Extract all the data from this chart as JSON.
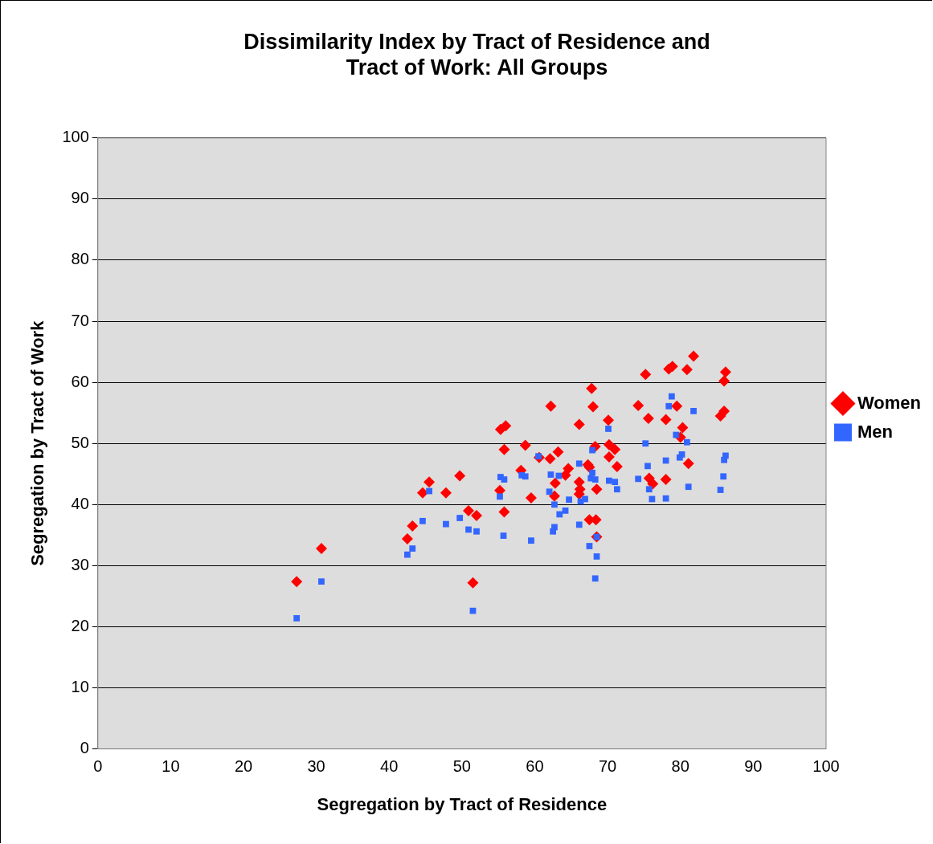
{
  "chart_data": {
    "type": "scatter",
    "title": "Dissimilarity Index by Tract of Residence and Tract of Work: All Groups",
    "xlabel": "Segregation by Tract of Residence",
    "ylabel": "Segregation by Tract of Work",
    "xlim": [
      0,
      100
    ],
    "xticks": [
      0,
      10,
      20,
      30,
      40,
      50,
      60,
      70,
      80,
      90,
      100
    ],
    "ylim": [
      0,
      100
    ],
    "yticks": [
      0,
      10,
      20,
      30,
      40,
      50,
      60,
      70,
      80,
      90,
      100
    ],
    "grid": "y",
    "legend": "right",
    "series": [
      {
        "name": "Women",
        "color": "#ff0000",
        "marker": "diamond",
        "x": [
          27.3,
          30.7,
          42.5,
          43.2,
          44.6,
          45.5,
          47.8,
          49.7,
          50.9,
          52.0,
          51.5,
          67.8,
          62.2,
          68.0,
          70.1,
          66.1,
          55.3,
          56.0,
          55.8,
          58.7,
          63.2,
          62.1,
          60.6,
          68.3,
          70.2,
          71.0,
          70.2,
          71.3,
          64.6,
          64.2,
          67.3,
          67.5,
          58.1,
          66.1,
          62.8,
          66.2,
          68.5,
          55.2,
          62.7,
          59.5,
          66.1,
          55.8,
          67.5,
          68.4,
          68.5,
          81.8,
          78.4,
          78.9,
          80.9,
          75.2,
          86.2,
          86.0,
          74.2,
          79.5,
          75.6,
          78.0,
          85.5,
          86.0,
          80.3,
          80.0,
          81.1,
          75.7,
          76.2,
          78.0
        ],
        "values": [
          27.4,
          32.8,
          34.4,
          36.5,
          41.9,
          43.7,
          41.9,
          44.7,
          39.0,
          38.2,
          27.2,
          59.0,
          56.1,
          56.0,
          53.8,
          53.1,
          52.3,
          52.9,
          49.0,
          49.7,
          48.6,
          47.5,
          47.7,
          49.5,
          49.8,
          49.0,
          47.8,
          46.2,
          45.9,
          44.8,
          46.5,
          46.1,
          45.6,
          43.7,
          43.5,
          42.5,
          42.5,
          42.3,
          41.4,
          41.1,
          41.7,
          38.8,
          37.5,
          37.5,
          34.7,
          64.3,
          62.2,
          62.6,
          62.1,
          61.3,
          61.7,
          60.2,
          56.2,
          56.1,
          54.1,
          53.9,
          54.5,
          55.3,
          52.6,
          51.0,
          46.7,
          44.3,
          43.4,
          44.1
        ]
      },
      {
        "name": "Men",
        "color": "#3366ff",
        "marker": "square",
        "x": [
          27.3,
          30.7,
          42.5,
          43.2,
          44.6,
          45.5,
          47.8,
          49.7,
          50.9,
          52.0,
          51.5,
          70.1,
          67.9,
          60.5,
          66.1,
          55.3,
          55.8,
          58.2,
          58.7,
          62.2,
          63.3,
          67.9,
          68.3,
          67.7,
          70.2,
          71.0,
          71.3,
          62.0,
          55.2,
          64.7,
          66.9,
          66.3,
          62.7,
          64.2,
          63.4,
          66.1,
          62.7,
          62.5,
          55.7,
          59.5,
          68.5,
          67.5,
          68.5,
          68.3,
          78.8,
          78.4,
          81.8,
          79.4,
          80.9,
          75.2,
          80.2,
          79.9,
          86.2,
          86.0,
          75.5,
          78.0,
          74.2,
          85.9,
          75.7,
          81.1,
          85.5,
          76.1,
          78.0
        ],
        "values": [
          21.4,
          27.4,
          31.8,
          32.8,
          37.3,
          42.2,
          36.8,
          37.8,
          35.9,
          35.6,
          22.6,
          52.4,
          48.9,
          47.9,
          46.7,
          44.5,
          44.1,
          44.8,
          44.6,
          44.9,
          44.7,
          45.2,
          44.1,
          44.3,
          43.9,
          43.7,
          42.5,
          42.1,
          41.3,
          40.8,
          40.9,
          40.5,
          40.0,
          39.0,
          38.4,
          36.7,
          36.3,
          35.6,
          34.9,
          34.1,
          34.7,
          33.2,
          31.5,
          27.9,
          57.7,
          56.1,
          55.3,
          51.4,
          50.2,
          50.0,
          48.2,
          47.7,
          48.0,
          47.3,
          46.3,
          47.2,
          44.2,
          44.6,
          42.5,
          42.9,
          42.4,
          40.9,
          41.0
        ]
      }
    ]
  }
}
